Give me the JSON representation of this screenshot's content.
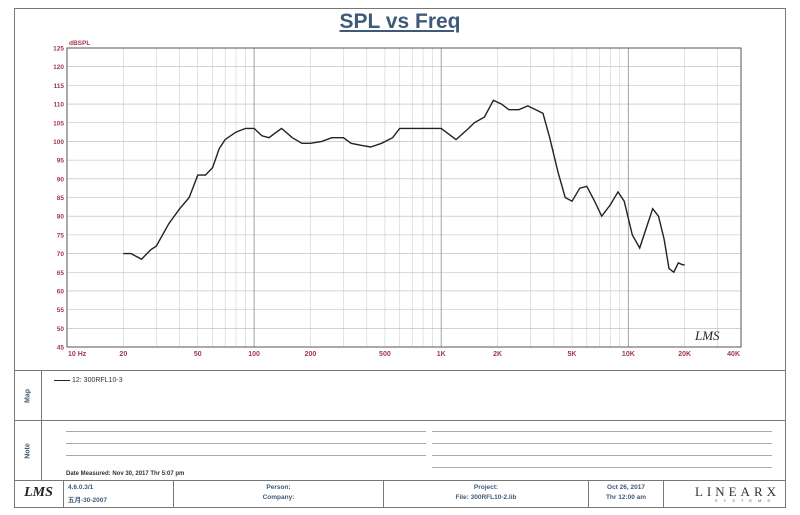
{
  "chart_data": {
    "type": "line",
    "title": "SPL vs Freq",
    "ylabel": "dBSPL",
    "xscale": "log",
    "xlim": [
      10,
      40000
    ],
    "ylim": [
      45,
      125
    ],
    "x_tick_labels": [
      "10 Hz",
      "20",
      "50",
      "100",
      "200",
      "500",
      "1K",
      "2K",
      "5K",
      "10K",
      "20K",
      "40K"
    ],
    "x_tick_values": [
      10,
      20,
      50,
      100,
      200,
      500,
      1000,
      2000,
      5000,
      10000,
      20000,
      40000
    ],
    "y_ticks": [
      45,
      50,
      55,
      60,
      65,
      70,
      75,
      80,
      85,
      90,
      95,
      100,
      105,
      110,
      115,
      120,
      125
    ],
    "grid": true,
    "series": [
      {
        "name": "12: 300RFL10-3",
        "color": "#222222",
        "x": [
          20,
          22,
          25,
          28,
          30,
          35,
          40,
          45,
          50,
          55,
          60,
          65,
          70,
          80,
          90,
          100,
          110,
          120,
          140,
          160,
          180,
          200,
          230,
          260,
          300,
          330,
          370,
          420,
          480,
          550,
          600,
          700,
          800,
          900,
          1000,
          1200,
          1400,
          1500,
          1700,
          1900,
          2100,
          2300,
          2600,
          2900,
          3200,
          3500,
          3800,
          4200,
          4600,
          5000,
          5500,
          6000,
          6600,
          7200,
          8000,
          8800,
          9500,
          10500,
          11500,
          12500,
          13500,
          14500,
          15500,
          16500,
          17500,
          18500,
          19500,
          20000
        ],
        "values": [
          70,
          70,
          68.5,
          71,
          72,
          78,
          82,
          85,
          91,
          91,
          93,
          98,
          100.5,
          102.5,
          103.5,
          103.5,
          101.5,
          101,
          103.5,
          101,
          99.5,
          99.5,
          100,
          101,
          101,
          99.5,
          99,
          98.5,
          99.5,
          101,
          103.5,
          103.5,
          103.5,
          103.5,
          103.5,
          100.5,
          103.5,
          105,
          106.5,
          111,
          110,
          108.5,
          108.5,
          109.5,
          108.5,
          107.5,
          101,
          92,
          85,
          84,
          87.5,
          88,
          84,
          80,
          83,
          86.5,
          84,
          75,
          71.5,
          77,
          82,
          80,
          74,
          66,
          65,
          67.5,
          67,
          67
        ]
      }
    ]
  },
  "map_panel": {
    "side_label": "Map",
    "legend_label": "12: 300RFL10-3"
  },
  "note_panel": {
    "side_label": "Note",
    "date_measured": "Date Measured: Nov 30, 2017  Thr  5:07 pm"
  },
  "footer": {
    "logo": "LMS",
    "version": "4.6.0.3/1",
    "version_date": "五月-30-2007",
    "person_label": "Person:",
    "company_label": "Company:",
    "project_label": "Project:",
    "file_label": "File: 300RFL10-2.lib",
    "date": "Oct 26, 2017",
    "time": "Thr 12:00 am",
    "brand": "LINEARX",
    "brand_sub": "SYSTEMS"
  },
  "watermark": "LMS"
}
